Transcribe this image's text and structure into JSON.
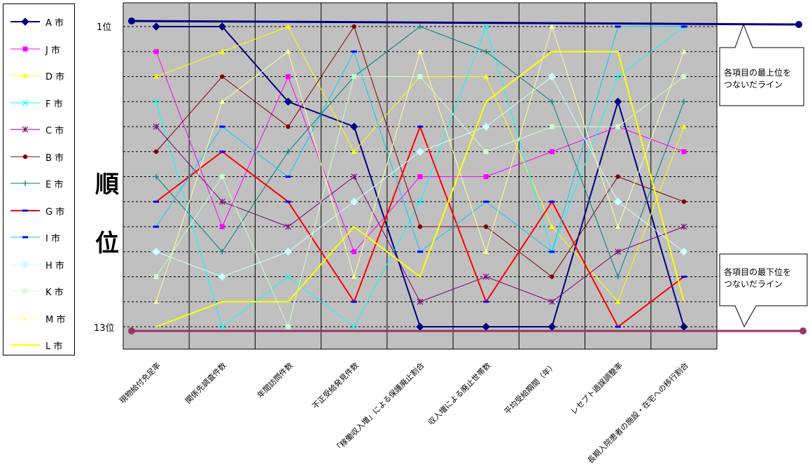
{
  "chart_data": {
    "type": "line",
    "ylabel": "順位",
    "yticks": [
      "1位",
      "13位"
    ],
    "ylim": [
      1,
      13
    ],
    "y_inverted": true,
    "grid": true,
    "legend_placement": "left",
    "categories": [
      "現物給付充足率",
      "関係先調査件数",
      "年間訪問件数",
      "不正受給発見件数",
      "「稼働収入増」による保護廃止割合",
      "収入増による廃止世帯数",
      "平均受給期間（年）",
      "レセプト過誤調整率",
      "長期入院患者の施設・在宅への移行割合"
    ],
    "series": [
      {
        "name": "A 市",
        "color": "#000080",
        "marker": "diamond",
        "values": [
          1,
          1,
          4,
          5,
          13,
          13,
          13,
          4,
          13
        ]
      },
      {
        "name": "J 市",
        "color": "#ff00ff",
        "marker": "square",
        "values": [
          2,
          9,
          3,
          10,
          7,
          7,
          6,
          5,
          6
        ]
      },
      {
        "name": "D 市",
        "color": "#ffff00",
        "marker": "triangle",
        "values": [
          3,
          2,
          1,
          6,
          3,
          3,
          9,
          12,
          5
        ]
      },
      {
        "name": "F 市",
        "color": "#00ffff",
        "marker": "x",
        "values": [
          4,
          13,
          11,
          13,
          8,
          1,
          10,
          3,
          1
        ]
      },
      {
        "name": "C 市",
        "color": "#800080",
        "marker": "star",
        "values": [
          5,
          8,
          9,
          7,
          12,
          11,
          12,
          10,
          9
        ]
      },
      {
        "name": "B 市",
        "color": "#800000",
        "marker": "circle",
        "values": [
          6,
          3,
          5,
          1,
          9,
          9,
          11,
          7,
          8
        ]
      },
      {
        "name": "E 市",
        "color": "#008080",
        "marker": "plus",
        "values": [
          7,
          10,
          6,
          3,
          1,
          2,
          4,
          11,
          4
        ]
      },
      {
        "name": "G 市",
        "color": "#ff0000",
        "marker": "dash",
        "values": [
          8,
          6,
          8,
          12,
          5,
          12,
          8,
          13,
          11
        ]
      },
      {
        "name": "I 市",
        "color": "#00ccff",
        "marker": "dash",
        "values": [
          9,
          5,
          7,
          2,
          10,
          8,
          10,
          1,
          1
        ]
      },
      {
        "name": "H 市",
        "color": "#ccffff",
        "marker": "diamond",
        "values": [
          10,
          11,
          10,
          8,
          6,
          5,
          3,
          8,
          10
        ]
      },
      {
        "name": "K 市",
        "color": "#ccffcc",
        "marker": "square",
        "values": [
          11,
          7,
          13,
          3,
          3,
          6,
          5,
          5,
          3
        ]
      },
      {
        "name": "M 市",
        "color": "#ffff99",
        "marker": "triangle",
        "values": [
          12,
          4,
          2,
          11,
          2,
          10,
          1,
          9,
          2
        ]
      },
      {
        "name": "L 市",
        "color": "#ffff00",
        "marker": "none",
        "width": 2,
        "values": [
          13,
          12,
          12,
          9,
          11,
          4,
          2,
          2,
          12
        ]
      }
    ],
    "annotations": {
      "top_line_label": "各項目の最上位を\nつないだライン",
      "bottom_line_label": "各項目の最下位を\nつないだライン",
      "top_line_color": "#000080",
      "bottom_line_color": "#993366"
    }
  }
}
